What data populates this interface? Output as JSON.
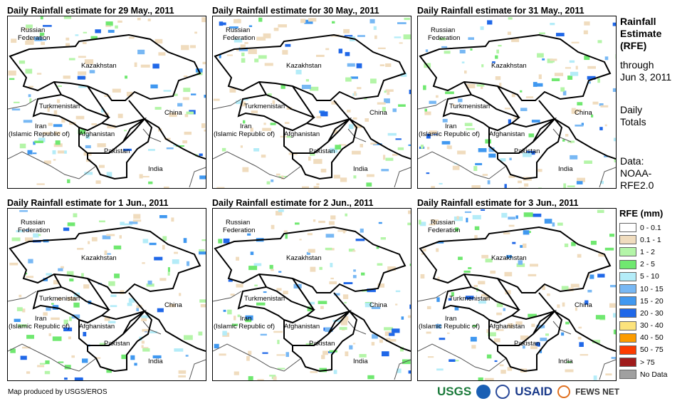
{
  "panels": [
    {
      "title": "Daily Rainfall estimate for 29 May., 2011"
    },
    {
      "title": "Daily Rainfall estimate for 30 May., 2011"
    },
    {
      "title": "Daily Rainfall estimate for 31 May., 2011"
    },
    {
      "title": "Daily Rainfall estimate for 1 Jun., 2011"
    },
    {
      "title": "Daily Rainfall estimate for 2 Jun., 2011"
    },
    {
      "title": "Daily Rainfall estimate for 3 Jun., 2011"
    }
  ],
  "labels": {
    "russia1": "Russian",
    "russia2": "Federation",
    "kazakhstan": "Kazakhstan",
    "turkmenistan": "Turkmenistan",
    "iran1": "Iran",
    "iran2": "(Islamic Republic of)",
    "afghanistan": "Afghanistan",
    "pakistan": "Pakistan",
    "china": "China",
    "india": "India"
  },
  "side": {
    "title1": "Rainfall",
    "title2": "Estimate",
    "title3": "(RFE)",
    "through": "through",
    "date": "Jun 3, 2011",
    "daily1": "Daily",
    "daily2": "Totals",
    "data1": "Data:",
    "data2": "NOAA-",
    "data3": "RFE2.0"
  },
  "legend": {
    "title": "RFE (mm)",
    "items": [
      {
        "label": "0 - 0.1",
        "color": "#ffffff"
      },
      {
        "label": "0.1 - 1",
        "color": "#f0dcbe"
      },
      {
        "label": "1 - 2",
        "color": "#b4f5a8"
      },
      {
        "label": "2 - 5",
        "color": "#70e870"
      },
      {
        "label": "5 - 10",
        "color": "#b4ecf8"
      },
      {
        "label": "10 - 15",
        "color": "#78b8f4"
      },
      {
        "label": "15 - 20",
        "color": "#4098f0"
      },
      {
        "label": "20 - 30",
        "color": "#2068e8"
      },
      {
        "label": "30 - 40",
        "color": "#fce37c"
      },
      {
        "label": "40 - 50",
        "color": "#fc9c00"
      },
      {
        "label": "50 - 75",
        "color": "#fc3c00"
      },
      {
        "label": "> 75",
        "color": "#a01c1c"
      },
      {
        "label": "No Data",
        "color": "#a0a0a0"
      }
    ]
  },
  "footer": {
    "credit": "Map produced by USGS/EROS",
    "usgs": "USGS",
    "usaid": "USAID",
    "fews": "FEWS NET"
  }
}
